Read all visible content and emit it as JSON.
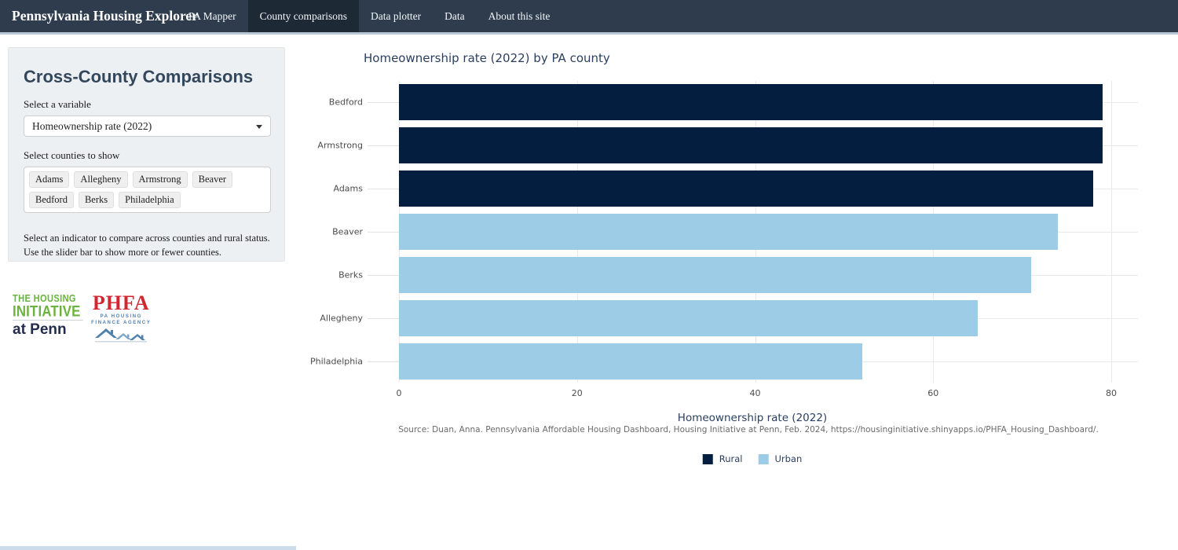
{
  "navbar": {
    "brand": "Pennsylvania Housing Explorer",
    "tabs": [
      {
        "label": "PA Mapper",
        "active": false
      },
      {
        "label": "County comparisons",
        "active": true
      },
      {
        "label": "Data plotter",
        "active": false
      },
      {
        "label": "Data",
        "active": false
      },
      {
        "label": "About this site",
        "active": false
      }
    ]
  },
  "sidebar": {
    "title": "Cross-County Comparisons",
    "variable_label": "Select a variable",
    "variable_value": "Homeownership rate (2022)",
    "counties_label": "Select counties to show",
    "county_tags": [
      "Adams",
      "Allegheny",
      "Armstrong",
      "Beaver",
      "Bedford",
      "Berks",
      "Philadelphia"
    ],
    "helper_text": "Select an indicator to compare across counties and rural status. Use the slider bar to show more or fewer counties."
  },
  "logos": {
    "hip_line1": "THE HOUSING",
    "hip_line2": "INITIATIVE",
    "hip_line3": "at Penn",
    "phfa_acronym": "PHFA",
    "phfa_sub1": "PA HOUSING",
    "phfa_sub2": "FINANCE AGENCY",
    "colors": {
      "hip_green": "#6ab33e",
      "hip_navy": "#232c4d",
      "phfa_red": "#d22630",
      "phfa_blue": "#4f81ad"
    }
  },
  "chart_data": {
    "type": "bar",
    "orientation": "horizontal",
    "title": "Homeownership rate (2022) by PA county",
    "categories": [
      "Bedford",
      "Armstrong",
      "Adams",
      "Beaver",
      "Berks",
      "Allegheny",
      "Philadelphia"
    ],
    "values": [
      79,
      79,
      78,
      74,
      71,
      65,
      52
    ],
    "groups": [
      "Rural",
      "Rural",
      "Rural",
      "Urban",
      "Urban",
      "Urban",
      "Urban"
    ],
    "xlabel": "Homeownership rate (2022)",
    "xlim": [
      0,
      80
    ],
    "xticks": [
      0,
      20,
      40,
      60,
      80
    ],
    "grid": true,
    "legend_position": "bottom-center",
    "legend": [
      {
        "label": "Rural",
        "color": "#041e3f"
      },
      {
        "label": "Urban",
        "color": "#9dcde6"
      }
    ],
    "source_note": "Source: Duan, Anna. Pennsylvania Affordable Housing Dashboard, Housing Initiative at Penn, Feb. 2024, https://housinginitiative.shinyapps.io/PHFA_Housing_Dashboard/."
  }
}
